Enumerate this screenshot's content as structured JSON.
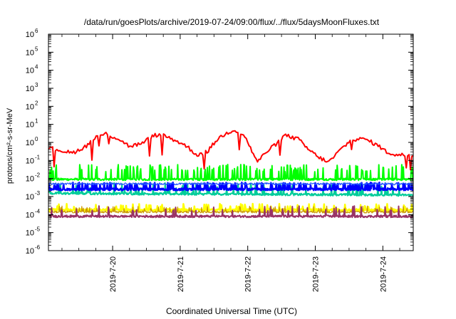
{
  "chart_data": {
    "type": "line",
    "title": "/data/run/goesPlots/archive/2019-07-24/09:00/flux/../flux/5daysMoonFluxes.txt",
    "xlabel": "Coordinated Universal Time (UTC)",
    "ylabel": "protons/cm²-s-sr-MeV",
    "yscale": "log",
    "ylim": [
      1e-06,
      1000000.0
    ],
    "xlim": [
      -0.95,
      4.45
    ],
    "x_ticks": [
      {
        "x": 0,
        "label": "2019-7-20"
      },
      {
        "x": 1,
        "label": "2019-7-21"
      },
      {
        "x": 2,
        "label": "2019-7-22"
      },
      {
        "x": 3,
        "label": "2019-7-23"
      },
      {
        "x": 4,
        "label": "2019-7-24"
      }
    ],
    "y_ticks": [
      {
        "exp": -6,
        "label": "10",
        "sup": "-6"
      },
      {
        "exp": -5,
        "label": "10",
        "sup": "-5"
      },
      {
        "exp": -4,
        "label": "10",
        "sup": "-4"
      },
      {
        "exp": -3,
        "label": "10",
        "sup": "-3"
      },
      {
        "exp": -2,
        "label": "10",
        "sup": "-2"
      },
      {
        "exp": -1,
        "label": "10",
        "sup": "-1"
      },
      {
        "exp": 0,
        "label": "10",
        "sup": "0"
      },
      {
        "exp": 1,
        "label": "10",
        "sup": "1"
      },
      {
        "exp": 2,
        "label": "10",
        "sup": "2"
      },
      {
        "exp": 3,
        "label": "10",
        "sup": "3"
      },
      {
        "exp": 4,
        "label": "10",
        "sup": "4"
      },
      {
        "exp": 5,
        "label": "10",
        "sup": "5"
      },
      {
        "exp": 6,
        "label": "10",
        "sup": "6"
      }
    ],
    "grid": false,
    "legend": "none",
    "series": [
      {
        "color": "#ff0000",
        "stroke": 2,
        "x": [
          -0.95,
          -0.75,
          -0.6,
          -0.4,
          -0.25,
          -0.1,
          0.1,
          0.25,
          0.45,
          0.6,
          0.75,
          0.95,
          1.1,
          1.25,
          1.4,
          1.55,
          1.7,
          1.8,
          1.95,
          2.05,
          2.15,
          2.25,
          2.4,
          2.55,
          2.75,
          2.9,
          3.05,
          3.2,
          3.4,
          3.55,
          3.75,
          3.95,
          4.05,
          4.2,
          4.45
        ],
        "y": [
          0.5,
          0.35,
          0.25,
          0.6,
          2.0,
          3.0,
          1.5,
          0.6,
          0.9,
          2.5,
          2.5,
          1.2,
          0.6,
          0.2,
          0.3,
          1.5,
          3.5,
          5.0,
          2.5,
          0.4,
          0.08,
          0.25,
          0.7,
          2.5,
          1.5,
          0.4,
          0.15,
          0.08,
          0.5,
          1.5,
          1.5,
          0.6,
          0.3,
          0.2,
          0.2
        ]
      },
      {
        "color": "#00ff00",
        "stroke": 2,
        "x": [
          -0.95,
          4.45
        ],
        "y_base": [
          0.009,
          0.009
        ],
        "y_spike": [
          0.06,
          0.06
        ],
        "spikes": 150
      },
      {
        "color": "#00cc99",
        "stroke": 2,
        "x": [
          -0.95,
          4.45
        ],
        "y_base": [
          0.0015,
          0.0012
        ],
        "y_spike": [
          0.006,
          0.005
        ],
        "spikes": 80
      },
      {
        "color": "#0000ff",
        "stroke": 2.5,
        "x": [
          -0.95,
          4.45
        ],
        "y_base": [
          0.0025,
          0.0025
        ],
        "y_spike": [
          0.006,
          0.006
        ],
        "spikes": 140
      },
      {
        "color": "#2255ff",
        "stroke": 1.2,
        "x": [
          -0.95,
          4.45
        ],
        "y_base": [
          0.005,
          0.005
        ],
        "y_spike": [
          0.006,
          0.006
        ],
        "spikes": 40
      },
      {
        "color": "#ffff00",
        "stroke": 2.5,
        "x": [
          -0.95,
          4.45
        ],
        "y_base": [
          0.00018,
          0.00018
        ],
        "y_spike": [
          0.0004,
          0.0004
        ],
        "spikes": 60
      },
      {
        "color": "#cc9900",
        "stroke": 1.2,
        "x": [
          -0.95,
          4.45
        ],
        "y_base": [
          0.00014,
          0.00014
        ],
        "y_spike": [
          0.0003,
          0.0003
        ],
        "spikes": 60
      },
      {
        "color": "#993366",
        "stroke": 2,
        "x": [
          -0.95,
          4.45
        ],
        "y_base": [
          8e-05,
          8e-05
        ],
        "y_spike": [
          0.0003,
          0.0003
        ],
        "spikes": 45
      }
    ]
  }
}
